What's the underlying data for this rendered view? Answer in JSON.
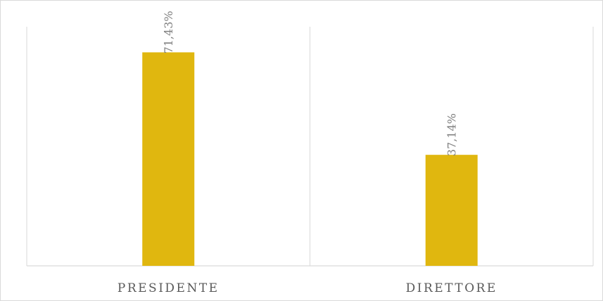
{
  "chart_data": {
    "type": "bar",
    "categories": [
      "PRESIDENTE",
      "DIRETTORE"
    ],
    "values": [
      71.43,
      37.14
    ],
    "data_labels": [
      "71,43%",
      "37,14%"
    ],
    "title": "",
    "xlabel": "",
    "ylabel": "",
    "ylim": [
      0,
      80
    ],
    "grid": false,
    "legend": "none",
    "bar_color": "#E0B70F",
    "axis_color": "#D9D9D9",
    "label_color": "#7F7F7F"
  }
}
